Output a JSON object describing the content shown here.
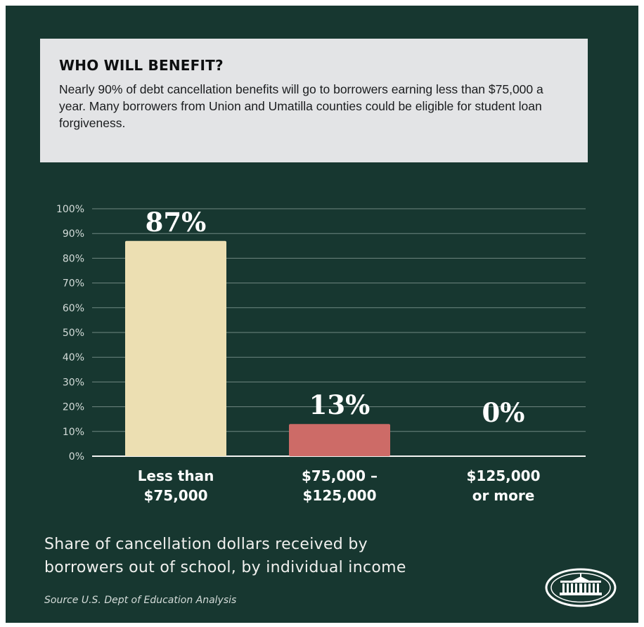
{
  "info": {
    "title": "WHO WILL BENEFIT?",
    "text": "Nearly 90% of debt cancellation benefits will go to borrowers earning less than $75,000 a year. Many borrowers from Union and Umatilla counties could be eligible for student loan forgiveness."
  },
  "chart_data": {
    "type": "bar",
    "categories": [
      [
        "Less than",
        "$75,000"
      ],
      [
        "$75,000 –",
        "$125,000"
      ],
      [
        "$125,000",
        "or more"
      ]
    ],
    "values": [
      87,
      13,
      0
    ],
    "value_labels": [
      "87%",
      "13%",
      "0%"
    ],
    "yticks": [
      "0%",
      "10%",
      "20%",
      "30%",
      "40%",
      "50%",
      "60%",
      "70%",
      "80%",
      "90%",
      "100%"
    ],
    "ylim": [
      0,
      100
    ],
    "grid": true,
    "colors": [
      "#ecdfb2",
      "#cd6b67",
      "#cd6b67"
    ],
    "title": "",
    "xlabel": "",
    "ylabel": ""
  },
  "subtitle_lines": [
    "Share of cancellation dollars received by",
    "borrowers out of school, by individual income"
  ],
  "source": "Source U.S. Dept of Education Analysis",
  "logo": {
    "icon": "white-house-seal-icon"
  }
}
